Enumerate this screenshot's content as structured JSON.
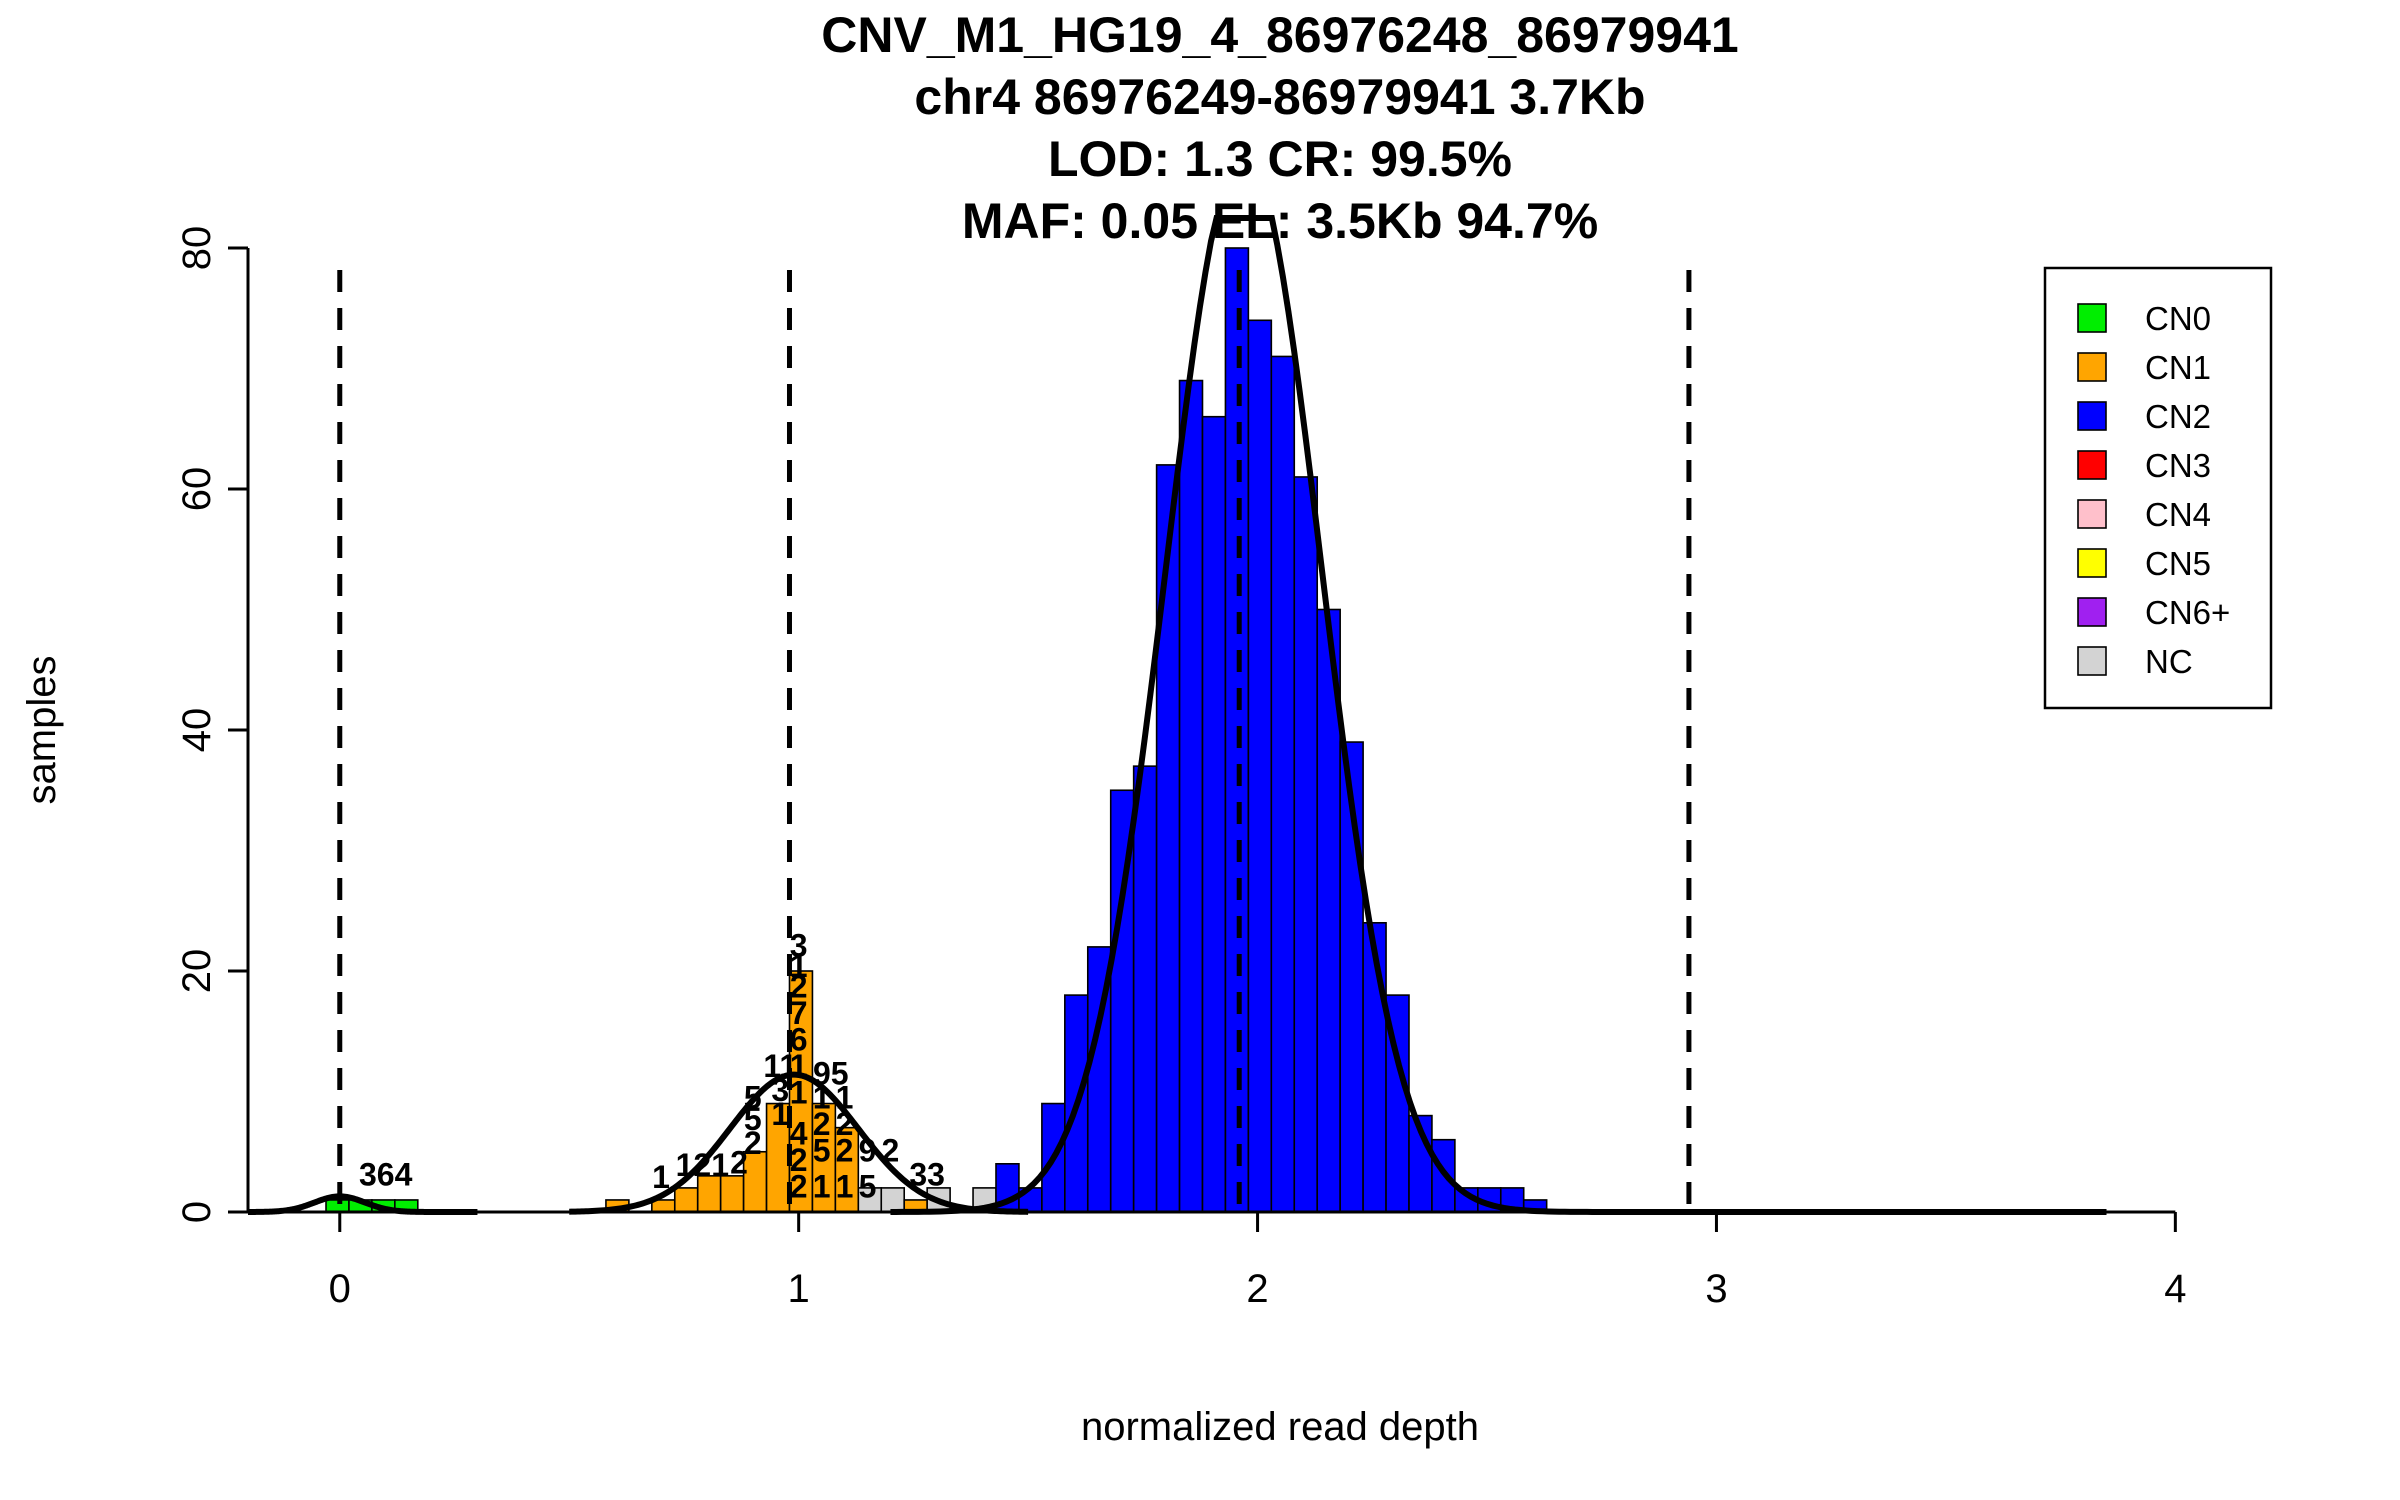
{
  "chart_data": {
    "type": "histogram",
    "title_lines": [
      "CNV_M1_HG19_4_86976248_86979941",
      "chr4 86976249-86979941 3.7Kb",
      "LOD: 1.3 CR: 99.5%",
      "MAF: 0.05 EL: 3.5Kb 94.7%"
    ],
    "xlabel": "normalized read depth",
    "ylabel": "samples",
    "xlim": [
      -0.2,
      4.13
    ],
    "ylim": [
      0,
      80
    ],
    "x_ticks": [
      0,
      1,
      2,
      3,
      4
    ],
    "x_tick_labels": [
      "0",
      "1",
      "2",
      "3",
      "4"
    ],
    "y_ticks": [
      0,
      20,
      40,
      60,
      80
    ],
    "y_tick_labels": [
      "0",
      "20",
      "40",
      "60",
      "80"
    ],
    "bin_width": 0.05,
    "bins": [
      {
        "x0": -0.03,
        "count": 1,
        "class": "CN0"
      },
      {
        "x0": 0.02,
        "count": 1,
        "class": "CN0"
      },
      {
        "x0": 0.07,
        "count": 1,
        "class": "CN0"
      },
      {
        "x0": 0.12,
        "count": 1,
        "class": "CN0"
      },
      {
        "x0": 0.58,
        "count": 1,
        "class": "CN1"
      },
      {
        "x0": 0.68,
        "count": 1,
        "class": "CN1"
      },
      {
        "x0": 0.73,
        "count": 2,
        "class": "CN1"
      },
      {
        "x0": 0.78,
        "count": 3,
        "class": "CN1"
      },
      {
        "x0": 0.83,
        "count": 3,
        "class": "CN1"
      },
      {
        "x0": 0.88,
        "count": 5,
        "class": "CN1"
      },
      {
        "x0": 0.93,
        "count": 9,
        "class": "CN1"
      },
      {
        "x0": 0.98,
        "count": 20,
        "class": "CN1"
      },
      {
        "x0": 1.03,
        "count": 9,
        "class": "CN1"
      },
      {
        "x0": 1.08,
        "count": 7,
        "class": "CN1"
      },
      {
        "x0": 1.13,
        "count": 2,
        "class": "NC"
      },
      {
        "x0": 1.18,
        "count": 2,
        "class": "NC"
      },
      {
        "x0": 1.23,
        "count": 1,
        "class": "CN1"
      },
      {
        "x0": 1.28,
        "count": 2,
        "class": "NC"
      },
      {
        "x0": 1.38,
        "count": 2,
        "class": "NC"
      },
      {
        "x0": 1.43,
        "count": 4,
        "class": "CN2"
      },
      {
        "x0": 1.48,
        "count": 2,
        "class": "CN2"
      },
      {
        "x0": 1.53,
        "count": 9,
        "class": "CN2"
      },
      {
        "x0": 1.58,
        "count": 18,
        "class": "CN2"
      },
      {
        "x0": 1.63,
        "count": 22,
        "class": "CN2"
      },
      {
        "x0": 1.68,
        "count": 35,
        "class": "CN2"
      },
      {
        "x0": 1.73,
        "count": 37,
        "class": "CN2"
      },
      {
        "x0": 1.78,
        "count": 62,
        "class": "CN2"
      },
      {
        "x0": 1.83,
        "count": 69,
        "class": "CN2"
      },
      {
        "x0": 1.88,
        "count": 66,
        "class": "CN2"
      },
      {
        "x0": 1.93,
        "count": 80,
        "class": "CN2"
      },
      {
        "x0": 1.98,
        "count": 74,
        "class": "CN2"
      },
      {
        "x0": 2.03,
        "count": 71,
        "class": "CN2"
      },
      {
        "x0": 2.08,
        "count": 61,
        "class": "CN2"
      },
      {
        "x0": 2.13,
        "count": 50,
        "class": "CN2"
      },
      {
        "x0": 2.18,
        "count": 39,
        "class": "CN2"
      },
      {
        "x0": 2.23,
        "count": 24,
        "class": "CN2"
      },
      {
        "x0": 2.28,
        "count": 18,
        "class": "CN2"
      },
      {
        "x0": 2.33,
        "count": 8,
        "class": "CN2"
      },
      {
        "x0": 2.38,
        "count": 6,
        "class": "CN2"
      },
      {
        "x0": 2.43,
        "count": 2,
        "class": "CN2"
      },
      {
        "x0": 2.48,
        "count": 2,
        "class": "CN2"
      },
      {
        "x0": 2.53,
        "count": 2,
        "class": "CN2"
      },
      {
        "x0": 2.58,
        "count": 1,
        "class": "CN2"
      }
    ],
    "bar_annotations": [
      {
        "text": "364",
        "x": 0.1,
        "y": 2.2
      },
      {
        "text": "1",
        "x": 0.7,
        "y": 2.0
      },
      {
        "text": "121",
        "x": 0.79,
        "y": 3.0
      },
      {
        "text": "2",
        "x": 0.87,
        "y": 3.2
      },
      {
        "text": "2",
        "x": 0.9,
        "y": 4.8
      },
      {
        "text": "5",
        "x": 0.9,
        "y": 6.8
      },
      {
        "text": "5",
        "x": 0.9,
        "y": 8.6
      },
      {
        "text": "11",
        "x": 0.96,
        "y": 11.2
      },
      {
        "text": "3",
        "x": 0.96,
        "y": 9.2
      },
      {
        "text": "1",
        "x": 0.96,
        "y": 7.2
      },
      {
        "text": "3",
        "x": 1.0,
        "y": 21.2
      },
      {
        "text": "1",
        "x": 1.0,
        "y": 19.5
      },
      {
        "text": "2",
        "x": 1.0,
        "y": 17.8
      },
      {
        "text": "7",
        "x": 1.0,
        "y": 15.6
      },
      {
        "text": "6",
        "x": 1.0,
        "y": 13.4
      },
      {
        "text": "1",
        "x": 1.0,
        "y": 11.2
      },
      {
        "text": "1",
        "x": 1.0,
        "y": 9.0
      },
      {
        "text": "4",
        "x": 1.0,
        "y": 5.6
      },
      {
        "text": "2",
        "x": 1.0,
        "y": 3.4
      },
      {
        "text": "2",
        "x": 1.0,
        "y": 1.2
      },
      {
        "text": "95",
        "x": 1.07,
        "y": 10.6
      },
      {
        "text": "1",
        "x": 1.05,
        "y": 8.6
      },
      {
        "text": "2",
        "x": 1.05,
        "y": 6.4
      },
      {
        "text": "5",
        "x": 1.05,
        "y": 4.2
      },
      {
        "text": "1",
        "x": 1.05,
        "y": 1.2
      },
      {
        "text": "1",
        "x": 1.1,
        "y": 8.6
      },
      {
        "text": "2",
        "x": 1.1,
        "y": 6.4
      },
      {
        "text": "2",
        "x": 1.1,
        "y": 4.2
      },
      {
        "text": "1",
        "x": 1.1,
        "y": 1.2
      },
      {
        "text": "9",
        "x": 1.15,
        "y": 4.2
      },
      {
        "text": "2",
        "x": 1.2,
        "y": 4.2
      },
      {
        "text": "5",
        "x": 1.15,
        "y": 1.2
      },
      {
        "text": "33",
        "x": 1.28,
        "y": 2.2
      }
    ],
    "vertical_lines": [
      0.0,
      0.98,
      1.96,
      2.94
    ],
    "density_curves": [
      {
        "name": "CN0",
        "mean": 0.0,
        "sd": 0.055,
        "peak": 1.3,
        "range": [
          -0.2,
          0.3
        ]
      },
      {
        "name": "CN1",
        "mean": 0.99,
        "sd": 0.14,
        "peak": 11.4,
        "range": [
          0.5,
          1.5
        ]
      },
      {
        "name": "CN2",
        "mean": 1.97,
        "sd": 0.17,
        "peak": 88,
        "range": [
          1.2,
          3.85
        ]
      }
    ],
    "legend": {
      "position": "top-right",
      "entries": [
        {
          "label": "CN0",
          "color": "#00ee00"
        },
        {
          "label": "CN1",
          "color": "#ffa500"
        },
        {
          "label": "CN2",
          "color": "#0000ff"
        },
        {
          "label": "CN3",
          "color": "#ff0000"
        },
        {
          "label": "CN4",
          "color": "#ffc0cb"
        },
        {
          "label": "CN5",
          "color": "#ffff00"
        },
        {
          "label": "CN6+",
          "color": "#a020f0"
        },
        {
          "label": "NC",
          "color": "#d3d3d3"
        }
      ]
    },
    "class_colors": {
      "CN0": "#00ee00",
      "CN1": "#ffa500",
      "CN2": "#0000ff",
      "CN3": "#ff0000",
      "CN4": "#ffc0cb",
      "CN5": "#ffff00",
      "CN6+": "#a020f0",
      "NC": "#d3d3d3"
    }
  }
}
